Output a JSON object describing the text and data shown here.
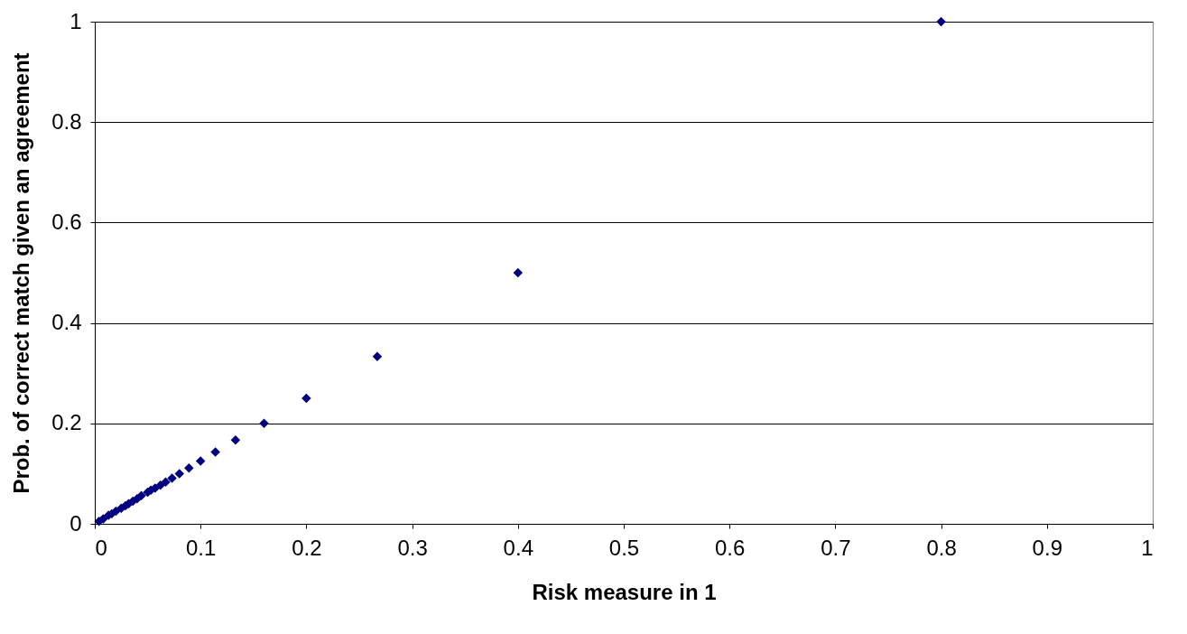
{
  "chart_data": {
    "type": "scatter",
    "xlabel": "Risk measure in 1",
    "ylabel": "Prob. of correct match given an agreement",
    "x": [
      0.8,
      0.4,
      0.267,
      0.2,
      0.16,
      0.133,
      0.114,
      0.1,
      0.089,
      0.08,
      0.073,
      0.067,
      0.062,
      0.057,
      0.053,
      0.05,
      0.044,
      0.04,
      0.036,
      0.032,
      0.029,
      0.025,
      0.02,
      0.016,
      0.013,
      0.008,
      0.004
    ],
    "series": [
      {
        "color": "#000080",
        "values": [
          1,
          0.5,
          0.333,
          0.25,
          0.2,
          0.167,
          0.143,
          0.125,
          0.111,
          0.1,
          0.091,
          0.083,
          0.077,
          0.071,
          0.067,
          0.063,
          0.056,
          0.05,
          0.045,
          0.04,
          0.036,
          0.031,
          0.025,
          0.02,
          0.017,
          0.01,
          0.005
        ]
      }
    ],
    "xlim": [
      0,
      1
    ],
    "xticks": [
      0,
      0.1,
      0.2,
      0.3,
      0.4,
      0.5,
      0.6,
      0.7,
      0.8,
      0.9,
      1
    ],
    "ylim": [
      0,
      1
    ],
    "yticks": [
      0,
      0.2,
      0.4,
      0.6,
      0.8,
      1
    ],
    "grid": "y",
    "marker": "diamond",
    "legend": false
  }
}
